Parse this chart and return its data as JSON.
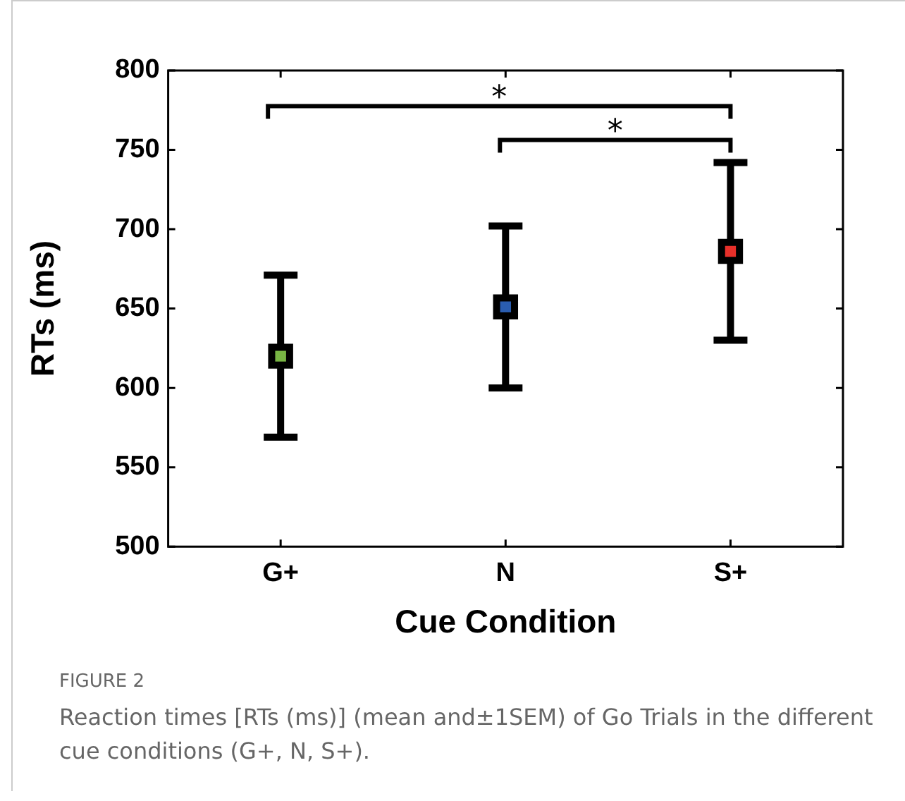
{
  "chart_data": {
    "type": "scatter",
    "xlabel": "Cue Condition",
    "ylabel": "RTs (ms)",
    "categories": [
      "G+",
      "N",
      "S+"
    ],
    "values": [
      620,
      651,
      686
    ],
    "errors": [
      51,
      51,
      56
    ],
    "colors": [
      "#78b544",
      "#2a5db0",
      "#e8302a"
    ],
    "marker": "square",
    "ylim": [
      500,
      800
    ],
    "yticks": [
      500,
      550,
      600,
      650,
      700,
      750,
      800
    ],
    "grid": false,
    "legend": false,
    "annotations": [
      "*",
      "*",
      "FIGURE 2",
      "Reaction times [RTs (ms)] (mean and±1SEM) of Go Trials in the different cue conditions (G+, N, S+)."
    ]
  }
}
